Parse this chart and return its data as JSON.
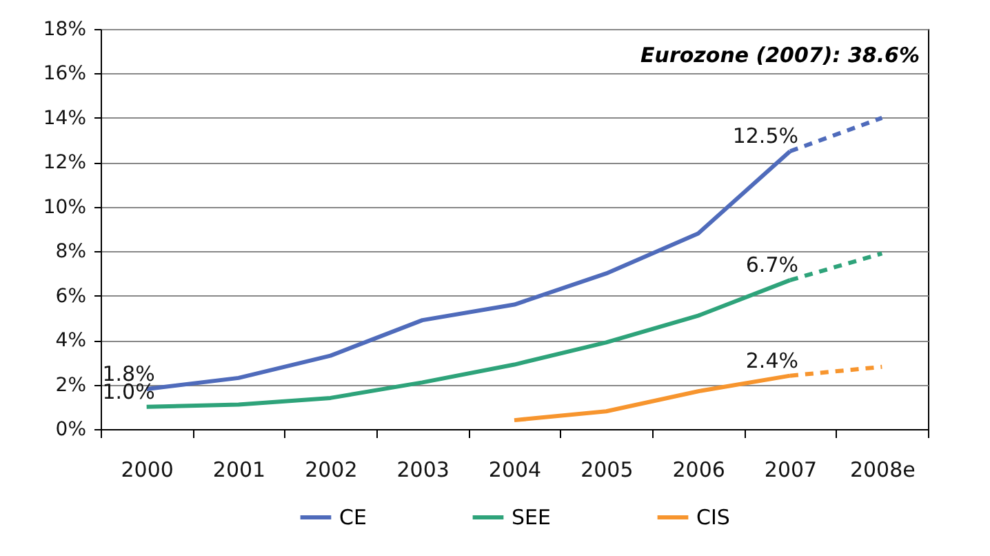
{
  "chart_data": {
    "type": "line",
    "categories": [
      "2000",
      "2001",
      "2002",
      "2003",
      "2004",
      "2005",
      "2006",
      "2007",
      "2008e"
    ],
    "series": [
      {
        "name": "CE",
        "color": "#4f6bbb",
        "line_style": "solid",
        "values": [
          1.8,
          2.3,
          3.3,
          4.9,
          5.6,
          7.0,
          8.8,
          12.5,
          null
        ],
        "value_labels": [
          "1.8%",
          null,
          null,
          null,
          null,
          null,
          null,
          "12.5%",
          null
        ]
      },
      {
        "name": "SEE",
        "color": "#2ea37a",
        "line_style": "solid",
        "values": [
          1.0,
          1.1,
          1.4,
          2.1,
          2.9,
          3.9,
          5.1,
          6.7,
          null
        ],
        "value_labels": [
          "1.0%",
          null,
          null,
          null,
          null,
          null,
          null,
          "6.7%",
          null
        ]
      },
      {
        "name": "CIS",
        "color": "#f7952e",
        "line_style": "solid",
        "values": [
          null,
          null,
          null,
          null,
          0.4,
          0.8,
          1.7,
          2.4,
          null
        ],
        "value_labels": [
          null,
          null,
          null,
          null,
          null,
          null,
          null,
          "2.4%",
          null
        ]
      },
      {
        "color": "#4f6bbb",
        "line_style": "dashed",
        "values": [
          null,
          null,
          null,
          null,
          null,
          null,
          null,
          12.5,
          14.0
        ]
      },
      {
        "color": "#2ea37a",
        "line_style": "dashed",
        "values": [
          null,
          null,
          null,
          null,
          null,
          null,
          null,
          6.7,
          7.9
        ]
      },
      {
        "color": "#f7952e",
        "line_style": "dashed",
        "values": [
          null,
          null,
          null,
          null,
          null,
          null,
          null,
          2.4,
          2.8
        ]
      }
    ],
    "annotations": [
      "Eurozone (2007): 38.6%"
    ],
    "ylim": [
      0,
      18
    ],
    "yticks": [
      {
        "value": 0,
        "label": "0%"
      },
      {
        "value": 2,
        "label": "2%"
      },
      {
        "value": 4,
        "label": "4%"
      },
      {
        "value": 6,
        "label": "6%"
      },
      {
        "value": 8,
        "label": "8%"
      },
      {
        "value": 10,
        "label": "10%"
      },
      {
        "value": 12,
        "label": "12%"
      },
      {
        "value": 14,
        "label": "14%"
      },
      {
        "value": 16,
        "label": "16%"
      },
      {
        "value": 18,
        "label": "18%"
      }
    ],
    "grid": "y",
    "legend": "bottom",
    "marker": "none"
  }
}
